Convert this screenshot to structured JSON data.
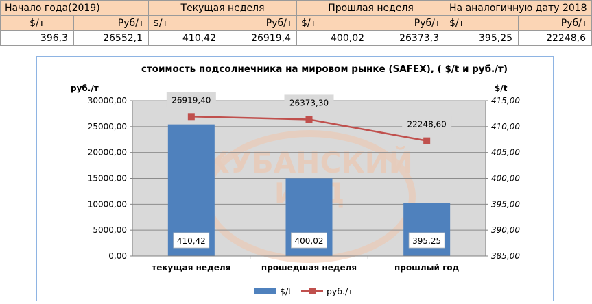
{
  "table": {
    "headers": [
      "Начало года(2019)",
      "Текущая неделя",
      "Прошлая неделя",
      "На аналогичную дату 2018 г"
    ],
    "units": [
      "$/т",
      "Руб/т",
      "$/т",
      "Руб/т",
      "$/т",
      "Руб/т",
      "$/т",
      "Руб/т"
    ],
    "values": [
      "396,3",
      "26552,1",
      "410,42",
      "26919,4",
      "400,02",
      "26373,3",
      "395,25",
      "22248,6"
    ]
  },
  "watermark": {
    "line1": "КУБАНСКИЙ",
    "line2": "ИЗД"
  },
  "chart_data": {
    "type": "bar",
    "title": "стоимость подсолнечника на мировом рынке (SAFEX), ( $/t и руб./т)",
    "categories": [
      "текущая неделя",
      "прошедшая неделя",
      "прошлый год"
    ],
    "y_left": {
      "label": "руб./т",
      "ylim": [
        0,
        30000
      ],
      "ticks": [
        "0,00",
        "5000,00",
        "10000,00",
        "15000,00",
        "20000,00",
        "25000,00",
        "30000,00"
      ]
    },
    "y_right": {
      "label": "$/t",
      "ylim": [
        385,
        415
      ],
      "ticks": [
        "385,00",
        "390,00",
        "395,00",
        "400,00",
        "405,00",
        "410,00",
        "415,00"
      ]
    },
    "series": [
      {
        "name": "$/t",
        "type": "bar",
        "axis": "right",
        "values": [
          410.42,
          400.02,
          395.25
        ],
        "labels": [
          "410,42",
          "400,02",
          "395,25"
        ],
        "color": "#4f81bd"
      },
      {
        "name": "руб./т",
        "type": "line",
        "axis": "left",
        "values": [
          26919.4,
          26373.3,
          22248.6
        ],
        "labels": [
          "26919,40",
          "26373,30",
          "22248,60"
        ],
        "color": "#c0504d"
      }
    ],
    "legend": "bottom",
    "grid": true,
    "plot_background": "#d9d9d9",
    "chart_background": "#ffffff",
    "border_color": "#8eb4e3"
  }
}
